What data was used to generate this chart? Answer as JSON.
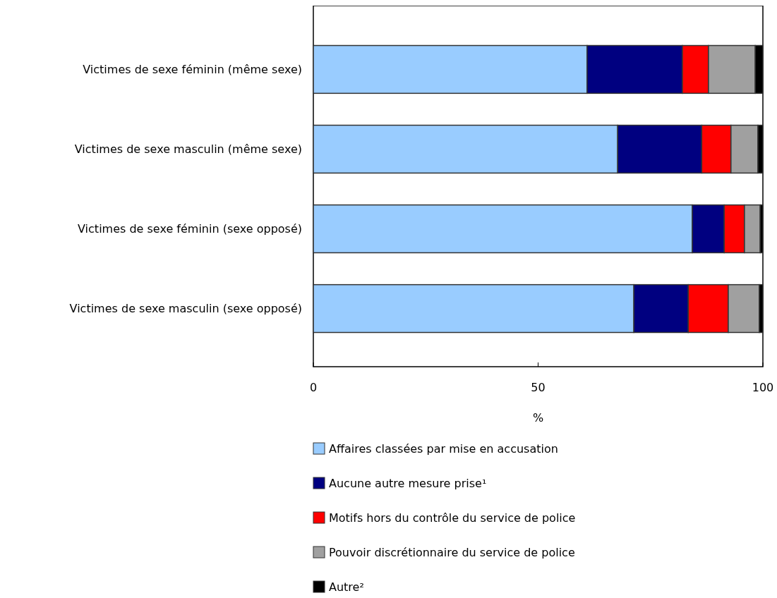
{
  "chart_data": {
    "type": "bar",
    "orientation": "horizontal",
    "stacked": true,
    "xlabel": "%",
    "categories": [
      "Victimes de sexe féminin (même sexe)",
      "Victimes de sexe masculin (même sexe)",
      "Victimes de sexe féminin (sexe opposé)",
      "Victimes de sexe masculin (sexe opposé)"
    ],
    "series": [
      {
        "name": "Affaires classées par mise en accusation",
        "color": "#99ccff",
        "values": [
          60.9,
          67.7,
          84.3,
          71.3
        ]
      },
      {
        "name": "Aucune autre mesure prise¹",
        "color": "#000080",
        "values": [
          21.2,
          18.7,
          7.1,
          12.1
        ]
      },
      {
        "name": "Motifs hors du contrôle du service de police",
        "color": "#ff0000",
        "values": [
          5.8,
          6.5,
          4.5,
          8.9
        ]
      },
      {
        "name": "Pouvoir discrétionnaire du service de police",
        "color": "#a0a0a0",
        "values": [
          10.4,
          6.0,
          3.5,
          6.9
        ]
      },
      {
        "name": "Autre²",
        "color": "#000000",
        "values": [
          1.7,
          1.1,
          0.6,
          0.8
        ]
      }
    ],
    "xlim": [
      0,
      100
    ],
    "xticks": [
      0,
      50,
      100
    ],
    "grid": false,
    "legend": "bottom"
  }
}
